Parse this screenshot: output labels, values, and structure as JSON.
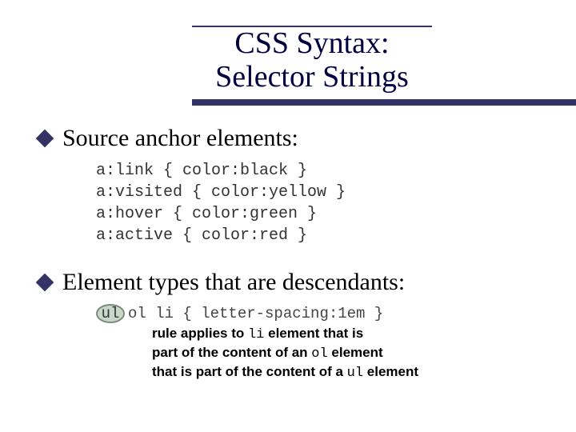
{
  "title": {
    "line1": "CSS Syntax:",
    "line2": "Selector Strings"
  },
  "colors": {
    "accent": "#333366",
    "text": "#000000",
    "code": "#333333",
    "highlight_fill": "#c8d8c8",
    "highlight_border": "#7a8a7a"
  },
  "bullets": [
    {
      "text": "Source anchor elements:"
    },
    {
      "text": "Element types that are descendants:"
    }
  ],
  "code1": [
    "a:link { color:black }",
    "a:visited { color:yellow }",
    "a:hover { color:green }",
    "a:active { color:red }"
  ],
  "descendant": {
    "highlighted": "ul",
    "rest": " ol li { letter-spacing:1em }"
  },
  "caption": {
    "l1a": "rule applies to ",
    "l1b": "li",
    "l1c": " element that is",
    "l2a": "part of the content of an ",
    "l2b": "ol",
    "l2c": " element",
    "l3a": "that is part of the content of a ",
    "l3b": "ul",
    "l3c": " element"
  }
}
